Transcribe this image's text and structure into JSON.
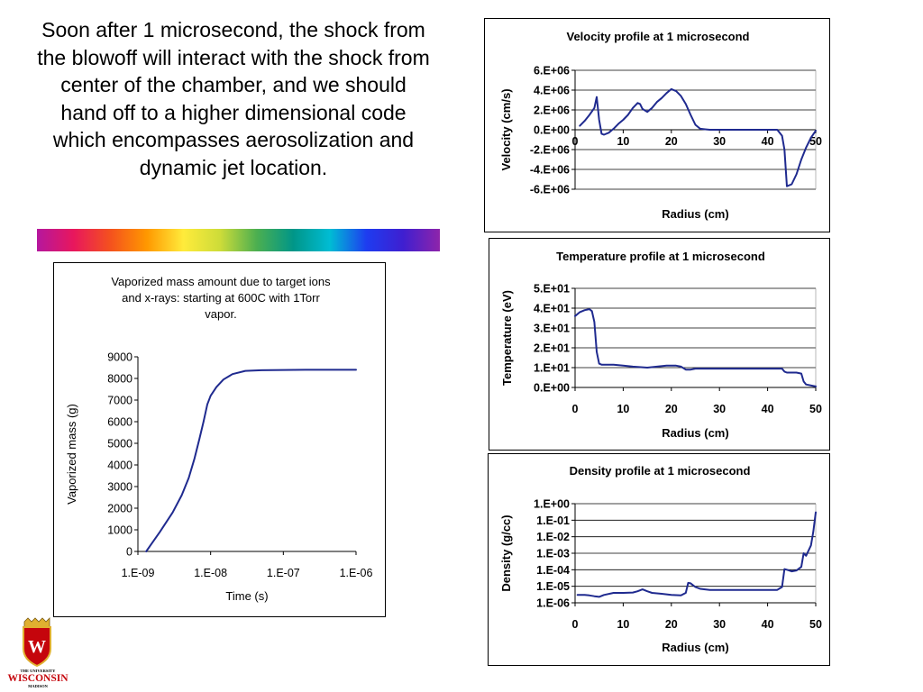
{
  "slide": {
    "text": "Soon after 1 microsecond, the shock from the blowoff will interact with the shock from center of the chamber, and we should hand off to a higher dimensional code which encompasses aerosolization and dynamic jet location."
  },
  "colors": {
    "line": "#1f2a8f",
    "grid": "#000000",
    "rainbow": [
      "#b5179e",
      "#e8175d",
      "#f4511e",
      "#ff9800",
      "#ffeb3b",
      "#cddc39",
      "#4caf50",
      "#009688",
      "#00bcd4",
      "#1e3cf0",
      "#3f1fd0",
      "#8e24aa"
    ]
  },
  "logo": {
    "top": "THE UNIVERSITY",
    "name": "WISCONSIN",
    "bottom": "MADISON",
    "crest_letter": "W"
  },
  "chart_data": [
    {
      "type": "line",
      "title": "Velocity profile at 1 microsecond",
      "xlabel": "Radius (cm)",
      "ylabel": "Velocity (cm/s)",
      "xlim": [
        0,
        50
      ],
      "ylim": [
        -6000000,
        6000000
      ],
      "x_ticks": [
        "0",
        "10",
        "20",
        "30",
        "40",
        "50"
      ],
      "y_ticks": [
        "6.E+06",
        "4.E+06",
        "2.E+06",
        "0.E+00",
        "-2.E+06",
        "-4.E+06",
        "-6.E+06"
      ],
      "grid": "horizontal",
      "x_axis_at_zero": true,
      "series": [
        {
          "x": [
            1,
            2,
            3,
            4,
            4.5,
            5,
            5.5,
            6,
            7,
            8,
            9,
            10,
            11,
            12,
            13,
            13.5,
            14,
            15,
            16,
            17,
            18,
            19,
            20,
            21,
            22,
            23,
            24,
            25,
            26,
            27,
            28,
            30,
            35,
            40,
            42,
            43,
            43.5,
            44,
            45,
            46,
            47,
            48,
            49,
            50
          ],
          "y": [
            400000,
            900000,
            1500000,
            2200000,
            3300000,
            1000000,
            -400000,
            -500000,
            -300000,
            100000,
            600000,
            1000000,
            1500000,
            2200000,
            2700000,
            2600000,
            2100000,
            1800000,
            2200000,
            2800000,
            3200000,
            3700000,
            4100000,
            3900000,
            3400000,
            2600000,
            1500000,
            500000,
            100000,
            50000,
            0,
            0,
            0,
            0,
            0,
            -600000,
            -2000000,
            -5700000,
            -5500000,
            -4500000,
            -3000000,
            -1800000,
            -800000,
            -100000
          ]
        }
      ]
    },
    {
      "type": "line",
      "title": "Temperature profile at 1 microsecond",
      "xlabel": "Radius (cm)",
      "ylabel": "Temperature (eV)",
      "xlim": [
        0,
        50
      ],
      "ylim": [
        0,
        50
      ],
      "x_ticks": [
        "0",
        "10",
        "20",
        "30",
        "40",
        "50"
      ],
      "y_ticks": [
        "5.E+01",
        "4.E+01",
        "3.E+01",
        "2.E+01",
        "1.E+01",
        "0.E+00"
      ],
      "grid": "horizontal",
      "series": [
        {
          "x": [
            0,
            1,
            2,
            3,
            3.5,
            4,
            4.5,
            5,
            5.5,
            8,
            10,
            12,
            15,
            17,
            19,
            20,
            21,
            22,
            23,
            24,
            25,
            30,
            35,
            40,
            43,
            43.5,
            44,
            46,
            47,
            47.5,
            48,
            50
          ],
          "y": [
            36,
            38,
            39,
            39.5,
            38.5,
            33,
            18,
            12,
            11.5,
            11.5,
            11,
            10.5,
            10,
            10.5,
            11,
            11,
            11,
            10.5,
            9,
            9,
            9.5,
            9.5,
            9.5,
            9.5,
            9.5,
            8,
            7.5,
            7.5,
            7,
            3,
            1.5,
            0.5
          ]
        }
      ]
    },
    {
      "type": "line",
      "title": "Density profile at 1 microsecond",
      "xlabel": "Radius (cm)",
      "ylabel": "Density (g/cc)",
      "xlim": [
        0,
        50
      ],
      "ylim": [
        1e-06,
        1
      ],
      "yscale": "log",
      "x_ticks": [
        "0",
        "10",
        "20",
        "30",
        "40",
        "50"
      ],
      "y_ticks": [
        "1.E+00",
        "1.E-01",
        "1.E-02",
        "1.E-03",
        "1.E-04",
        "1.E-05",
        "1.E-06"
      ],
      "grid": "horizontal",
      "series": [
        {
          "x": [
            0.5,
            2,
            3,
            4,
            5,
            6,
            8,
            10,
            12,
            13,
            14,
            15,
            16,
            18,
            20,
            22,
            23,
            23.5,
            24,
            25,
            26,
            28,
            30,
            35,
            40,
            42,
            43,
            43.5,
            44,
            45,
            46,
            47,
            47.5,
            48,
            49,
            49.5,
            50
          ],
          "y": [
            3e-06,
            3e-06,
            2.8e-06,
            2.5e-06,
            2.3e-06,
            3e-06,
            4e-06,
            4e-06,
            4.2e-06,
            5e-06,
            6.5e-06,
            5e-06,
            4e-06,
            3.5e-06,
            3e-06,
            2.8e-06,
            4e-06,
            1.6e-05,
            1.5e-05,
            9e-06,
            7e-06,
            6e-06,
            6e-06,
            6e-06,
            6e-06,
            6e-06,
            9e-06,
            0.00011,
            0.0001,
            8e-05,
            9e-05,
            0.00015,
            0.001,
            0.0007,
            0.003,
            0.02,
            0.3
          ]
        }
      ]
    },
    {
      "type": "line",
      "title": "Vaporized mass amount due to target ions and x-rays:  starting at 600C with 1Torr vapor.",
      "title_lines": [
        "Vaporized mass amount due to target ions",
        "and x-rays:  starting at 600C with 1Torr",
        "vapor."
      ],
      "xlabel": "Time (s)",
      "ylabel": "Vaporized mass (g)",
      "xscale": "log",
      "xlim": [
        1e-09,
        1e-06
      ],
      "ylim": [
        0,
        9000
      ],
      "x_ticks": [
        "1.E-09",
        "1.E-08",
        "1.E-07",
        "1.E-06"
      ],
      "y_ticks": [
        "9000",
        "8000",
        "7000",
        "6000",
        "5000",
        "4000",
        "3000",
        "2000",
        "1000",
        "0"
      ],
      "grid": "none",
      "series": [
        {
          "x": [
            1.3e-09,
            1.5e-09,
            2e-09,
            3e-09,
            4e-09,
            5e-09,
            6e-09,
            7e-09,
            8e-09,
            9e-09,
            1e-08,
            1.2e-08,
            1.5e-08,
            2e-08,
            3e-08,
            5e-08,
            1e-07,
            2e-07,
            5e-07,
            1e-06
          ],
          "y": [
            0,
            300,
            900,
            1800,
            2600,
            3400,
            4300,
            5200,
            6000,
            6800,
            7200,
            7600,
            7950,
            8200,
            8350,
            8380,
            8390,
            8400,
            8400,
            8400
          ]
        }
      ]
    }
  ]
}
